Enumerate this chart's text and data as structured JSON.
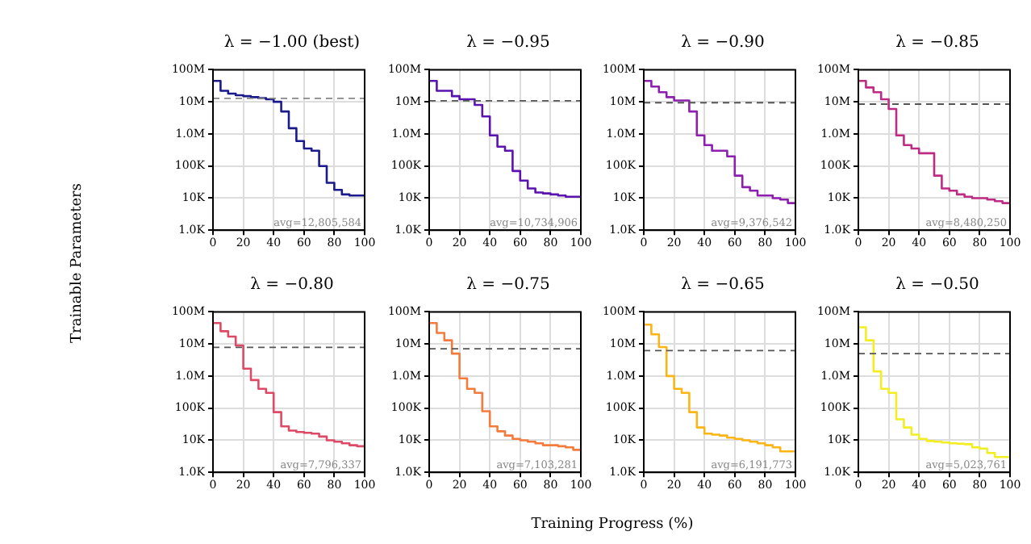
{
  "chart_data": [
    {
      "type": "step",
      "title": "λ = −1.00 (best)",
      "x": [
        0,
        5,
        10,
        15,
        20,
        25,
        30,
        35,
        40,
        45,
        50,
        55,
        60,
        65,
        70,
        75,
        80,
        85,
        90,
        95,
        100
      ],
      "series": [
        {
          "color": "#1a1a8c",
          "values": [
            45000000,
            45000000,
            22000000,
            18000000,
            16000000,
            15000000,
            14000000,
            13000000,
            12000000,
            10000000,
            5000000,
            1500000,
            600000,
            350000,
            300000,
            100000,
            30000,
            18000,
            13000,
            12000,
            12000
          ]
        }
      ],
      "xlim": [
        0,
        100
      ],
      "xticks": [
        0,
        20,
        40,
        60,
        80,
        100
      ],
      "ylim": [
        1000,
        100000000
      ],
      "yticks": [
        {
          "value": 1000,
          "label": "1.0K"
        },
        {
          "value": 10000,
          "label": "10K"
        },
        {
          "value": 100000,
          "label": "100K"
        },
        {
          "value": 1000000,
          "label": "1.0M"
        },
        {
          "value": 10000000,
          "label": "10M"
        },
        {
          "value": 100000000,
          "label": "100M"
        }
      ],
      "log": "y",
      "grid": true,
      "ref_lines": [
        {
          "axis": "y",
          "value": 12805584,
          "color": "#888888",
          "line_style": "dashed"
        }
      ],
      "annotations": [
        "avg=12,805,584"
      ]
    },
    {
      "type": "step",
      "title": "λ = −0.95",
      "x": [
        0,
        5,
        10,
        15,
        20,
        25,
        30,
        35,
        40,
        45,
        50,
        55,
        60,
        65,
        70,
        75,
        80,
        85,
        90,
        95,
        100
      ],
      "series": [
        {
          "color": "#5a12b0",
          "values": [
            45000000,
            45000000,
            22000000,
            22000000,
            15000000,
            12000000,
            12000000,
            8000000,
            3500000,
            900000,
            400000,
            300000,
            70000,
            35000,
            20000,
            15000,
            14000,
            13000,
            12000,
            11000,
            11000
          ]
        }
      ],
      "xlim": [
        0,
        100
      ],
      "xticks": [
        0,
        20,
        40,
        60,
        80,
        100
      ],
      "ylim": [
        1000,
        100000000
      ],
      "yticks": [
        {
          "value": 1000,
          "label": "1.0K"
        },
        {
          "value": 10000,
          "label": "10K"
        },
        {
          "value": 100000,
          "label": "100K"
        },
        {
          "value": 1000000,
          "label": "1.0M"
        },
        {
          "value": 10000000,
          "label": "10M"
        },
        {
          "value": 100000000,
          "label": "100M"
        }
      ],
      "log": "y",
      "grid": true,
      "ref_lines": [
        {
          "axis": "y",
          "value": 10734906,
          "color": "#555555",
          "line_style": "dashed"
        }
      ],
      "annotations": [
        "avg=10,734,906"
      ]
    },
    {
      "type": "step",
      "title": "λ = −0.90",
      "x": [
        0,
        5,
        10,
        15,
        20,
        25,
        30,
        35,
        40,
        45,
        50,
        55,
        60,
        65,
        70,
        75,
        80,
        85,
        90,
        95,
        100
      ],
      "series": [
        {
          "color": "#8c1fae",
          "values": [
            45000000,
            45000000,
            30000000,
            20000000,
            14000000,
            11000000,
            11000000,
            5000000,
            900000,
            450000,
            300000,
            300000,
            200000,
            50000,
            22000,
            17000,
            12000,
            12000,
            10000,
            9000,
            7000
          ]
        }
      ],
      "xlim": [
        0,
        100
      ],
      "xticks": [
        0,
        20,
        40,
        60,
        80,
        100
      ],
      "ylim": [
        1000,
        100000000
      ],
      "yticks": [
        {
          "value": 1000,
          "label": "1.0K"
        },
        {
          "value": 10000,
          "label": "10K"
        },
        {
          "value": 100000,
          "label": "100K"
        },
        {
          "value": 1000000,
          "label": "1.0M"
        },
        {
          "value": 10000000,
          "label": "10M"
        },
        {
          "value": 100000000,
          "label": "100M"
        }
      ],
      "log": "y",
      "grid": true,
      "ref_lines": [
        {
          "axis": "y",
          "value": 9376542,
          "color": "#555555",
          "line_style": "dashed"
        }
      ],
      "annotations": [
        "avg=9,376,542"
      ]
    },
    {
      "type": "step",
      "title": "λ = −0.85",
      "x": [
        0,
        5,
        10,
        15,
        20,
        25,
        30,
        35,
        40,
        45,
        50,
        55,
        60,
        65,
        70,
        75,
        80,
        85,
        90,
        95,
        100
      ],
      "series": [
        {
          "color": "#bd2b84",
          "values": [
            45000000,
            45000000,
            28000000,
            20000000,
            12000000,
            6000000,
            900000,
            450000,
            350000,
            250000,
            250000,
            50000,
            20000,
            17000,
            13000,
            11000,
            10000,
            10000,
            9000,
            8000,
            7000
          ]
        }
      ],
      "xlim": [
        0,
        100
      ],
      "xticks": [
        0,
        20,
        40,
        60,
        80,
        100
      ],
      "ylim": [
        1000,
        100000000
      ],
      "yticks": [
        {
          "value": 1000,
          "label": "1.0K"
        },
        {
          "value": 10000,
          "label": "10K"
        },
        {
          "value": 100000,
          "label": "100K"
        },
        {
          "value": 1000000,
          "label": "1.0M"
        },
        {
          "value": 10000000,
          "label": "10M"
        },
        {
          "value": 100000000,
          "label": "100M"
        }
      ],
      "log": "y",
      "grid": true,
      "ref_lines": [
        {
          "axis": "y",
          "value": 8480250,
          "color": "#555555",
          "line_style": "dashed"
        }
      ],
      "annotations": [
        "avg=8,480,250"
      ]
    },
    {
      "type": "step",
      "title": "λ = −0.80",
      "x": [
        0,
        5,
        10,
        15,
        20,
        25,
        30,
        35,
        40,
        45,
        50,
        55,
        60,
        65,
        70,
        75,
        80,
        85,
        90,
        95,
        100
      ],
      "series": [
        {
          "color": "#de4a66",
          "values": [
            45000000,
            45000000,
            25000000,
            17000000,
            9000000,
            1700000,
            750000,
            400000,
            300000,
            75000,
            27000,
            20000,
            18000,
            17000,
            16000,
            13000,
            10000,
            9000,
            8000,
            7000,
            6500
          ]
        }
      ],
      "xlim": [
        0,
        100
      ],
      "xticks": [
        0,
        20,
        40,
        60,
        80,
        100
      ],
      "ylim": [
        1000,
        100000000
      ],
      "yticks": [
        {
          "value": 1000,
          "label": "1.0K"
        },
        {
          "value": 10000,
          "label": "10K"
        },
        {
          "value": 100000,
          "label": "100K"
        },
        {
          "value": 1000000,
          "label": "1.0M"
        },
        {
          "value": 10000000,
          "label": "10M"
        },
        {
          "value": 100000000,
          "label": "100M"
        }
      ],
      "log": "y",
      "grid": true,
      "ref_lines": [
        {
          "axis": "y",
          "value": 7796337,
          "color": "#555555",
          "line_style": "dashed"
        }
      ],
      "annotations": [
        "avg=7,796,337"
      ]
    },
    {
      "type": "step",
      "title": "λ = −0.75",
      "x": [
        0,
        5,
        10,
        15,
        20,
        25,
        30,
        35,
        40,
        45,
        50,
        55,
        60,
        65,
        70,
        75,
        80,
        85,
        90,
        95,
        100
      ],
      "series": [
        {
          "color": "#f47b3c",
          "values": [
            45000000,
            45000000,
            22000000,
            13000000,
            5000000,
            850000,
            400000,
            300000,
            80000,
            27000,
            19000,
            14000,
            11000,
            10000,
            9000,
            8000,
            7000,
            7000,
            6500,
            6000,
            5000
          ]
        }
      ],
      "xlim": [
        0,
        100
      ],
      "xticks": [
        0,
        20,
        40,
        60,
        80,
        100
      ],
      "ylim": [
        1000,
        100000000
      ],
      "yticks": [
        {
          "value": 1000,
          "label": "1.0K"
        },
        {
          "value": 10000,
          "label": "10K"
        },
        {
          "value": 100000,
          "label": "100K"
        },
        {
          "value": 1000000,
          "label": "1.0M"
        },
        {
          "value": 10000000,
          "label": "10M"
        },
        {
          "value": 100000000,
          "label": "100M"
        }
      ],
      "log": "y",
      "grid": true,
      "ref_lines": [
        {
          "axis": "y",
          "value": 7103281,
          "color": "#555555",
          "line_style": "dashed"
        }
      ],
      "annotations": [
        "avg=7,103,281"
      ]
    },
    {
      "type": "step",
      "title": "λ = −0.65",
      "x": [
        0,
        5,
        10,
        15,
        20,
        25,
        30,
        35,
        40,
        45,
        50,
        55,
        60,
        65,
        70,
        75,
        80,
        85,
        90,
        95,
        100
      ],
      "series": [
        {
          "color": "#fbb516",
          "values": [
            45000000,
            40000000,
            20000000,
            8000000,
            1000000,
            400000,
            300000,
            75000,
            25000,
            16000,
            15000,
            14000,
            12000,
            11000,
            10000,
            9000,
            8000,
            7000,
            6000,
            4500,
            4500
          ]
        }
      ],
      "xlim": [
        0,
        100
      ],
      "xticks": [
        0,
        20,
        40,
        60,
        80,
        100
      ],
      "ylim": [
        1000,
        100000000
      ],
      "yticks": [
        {
          "value": 1000,
          "label": "1.0K"
        },
        {
          "value": 10000,
          "label": "10K"
        },
        {
          "value": 100000,
          "label": "100K"
        },
        {
          "value": 1000000,
          "label": "1.0M"
        },
        {
          "value": 10000000,
          "label": "10M"
        },
        {
          "value": 100000000,
          "label": "100M"
        }
      ],
      "log": "y",
      "grid": true,
      "ref_lines": [
        {
          "axis": "y",
          "value": 6191773,
          "color": "#555555",
          "line_style": "dashed"
        }
      ],
      "annotations": [
        "avg=6,191,773"
      ]
    },
    {
      "type": "step",
      "title": "λ = −0.50",
      "x": [
        0,
        5,
        10,
        15,
        20,
        25,
        30,
        35,
        40,
        45,
        50,
        55,
        60,
        65,
        70,
        75,
        80,
        85,
        90,
        95,
        100
      ],
      "series": [
        {
          "color": "#f2ee22",
          "values": [
            45000000,
            33000000,
            13000000,
            1400000,
            400000,
            300000,
            45000,
            25000,
            15000,
            11000,
            9500,
            9000,
            8500,
            8000,
            7800,
            7500,
            6000,
            5500,
            4000,
            3000,
            3000
          ]
        }
      ],
      "xlim": [
        0,
        100
      ],
      "xticks": [
        0,
        20,
        40,
        60,
        80,
        100
      ],
      "ylim": [
        1000,
        100000000
      ],
      "yticks": [
        {
          "value": 1000,
          "label": "1.0K"
        },
        {
          "value": 10000,
          "label": "10K"
        },
        {
          "value": 100000,
          "label": "100K"
        },
        {
          "value": 1000000,
          "label": "1.0M"
        },
        {
          "value": 10000000,
          "label": "10M"
        },
        {
          "value": 100000000,
          "label": "100M"
        }
      ],
      "log": "y",
      "grid": true,
      "ref_lines": [
        {
          "axis": "y",
          "value": 5023761,
          "color": "#555555",
          "line_style": "dashed"
        }
      ],
      "annotations": [
        "avg=5,023,761"
      ]
    },
    {
      "type": "other",
      "xlabel": "Training Progress (%)",
      "ylabel": "Trainable Parameters"
    }
  ]
}
